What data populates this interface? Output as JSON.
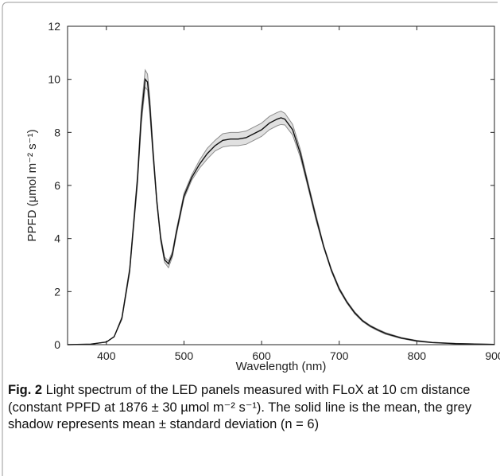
{
  "chart_data": {
    "type": "line",
    "xlabel": "Wavelength (nm)",
    "ylabel": "PPFD (μmol m⁻² s⁻¹)",
    "xlim": [
      350,
      900
    ],
    "ylim": [
      0,
      12
    ],
    "xticks": [
      400,
      500,
      600,
      700,
      800,
      900
    ],
    "yticks": [
      0,
      2,
      4,
      6,
      8,
      10,
      12
    ],
    "grid": false,
    "x": [
      350,
      380,
      400,
      410,
      420,
      430,
      440,
      445,
      450,
      453,
      456,
      460,
      465,
      470,
      475,
      480,
      485,
      490,
      500,
      510,
      520,
      530,
      540,
      550,
      560,
      570,
      580,
      590,
      600,
      610,
      620,
      625,
      630,
      640,
      650,
      660,
      670,
      680,
      690,
      700,
      710,
      720,
      730,
      740,
      750,
      760,
      780,
      800,
      820,
      850,
      880,
      900
    ],
    "series": [
      {
        "values": [
          0.0,
          0.02,
          0.1,
          0.3,
          1.0,
          2.8,
          6.2,
          8.6,
          10.0,
          9.9,
          9.0,
          7.3,
          5.4,
          4.0,
          3.2,
          3.05,
          3.4,
          4.2,
          5.6,
          6.3,
          6.8,
          7.2,
          7.5,
          7.7,
          7.75,
          7.75,
          7.8,
          7.95,
          8.1,
          8.35,
          8.5,
          8.55,
          8.5,
          8.1,
          7.2,
          6.0,
          4.8,
          3.7,
          2.8,
          2.1,
          1.6,
          1.2,
          0.9,
          0.7,
          0.55,
          0.42,
          0.25,
          0.14,
          0.08,
          0.04,
          0.02,
          0.01
        ]
      },
      {
        "values": [
          0.0,
          0.02,
          0.1,
          0.3,
          1.05,
          2.9,
          6.4,
          8.9,
          10.35,
          10.2,
          9.3,
          7.5,
          5.5,
          4.1,
          3.3,
          3.15,
          3.5,
          4.3,
          5.7,
          6.4,
          6.95,
          7.4,
          7.7,
          7.95,
          8.0,
          8.0,
          8.05,
          8.2,
          8.35,
          8.6,
          8.75,
          8.8,
          8.72,
          8.3,
          7.35,
          6.1,
          4.9,
          3.75,
          2.85,
          2.15,
          1.64,
          1.24,
          0.93,
          0.73,
          0.58,
          0.45,
          0.27,
          0.16,
          0.09,
          0.05,
          0.025,
          0.015
        ]
      },
      {
        "values": [
          0.0,
          0.02,
          0.1,
          0.3,
          0.95,
          2.7,
          6.0,
          8.3,
          9.7,
          9.6,
          8.7,
          7.1,
          5.3,
          3.9,
          3.1,
          2.9,
          3.3,
          4.1,
          5.5,
          6.2,
          6.65,
          7.0,
          7.3,
          7.45,
          7.5,
          7.5,
          7.55,
          7.7,
          7.85,
          8.1,
          8.25,
          8.3,
          8.28,
          7.9,
          7.05,
          5.9,
          4.7,
          3.65,
          2.75,
          2.05,
          1.56,
          1.16,
          0.87,
          0.67,
          0.52,
          0.39,
          0.23,
          0.12,
          0.07,
          0.03,
          0.015,
          0.005
        ]
      }
    ]
  },
  "caption": {
    "label": "Fig. 2",
    "text": "  Light spectrum of the LED panels measured with FLoX at 10 cm distance (constant PPFD at 1876 ± 30 µmol m⁻² s⁻¹). The solid line is the mean, the grey shadow represents mean ± standard deviation (n = 6)"
  },
  "colors": {
    "mean_line": "#111111",
    "band_fill": "#e0e0e0",
    "band_edge": "#8c8c8c",
    "axis": "#222222",
    "frame_border": "#9a9a9a"
  }
}
